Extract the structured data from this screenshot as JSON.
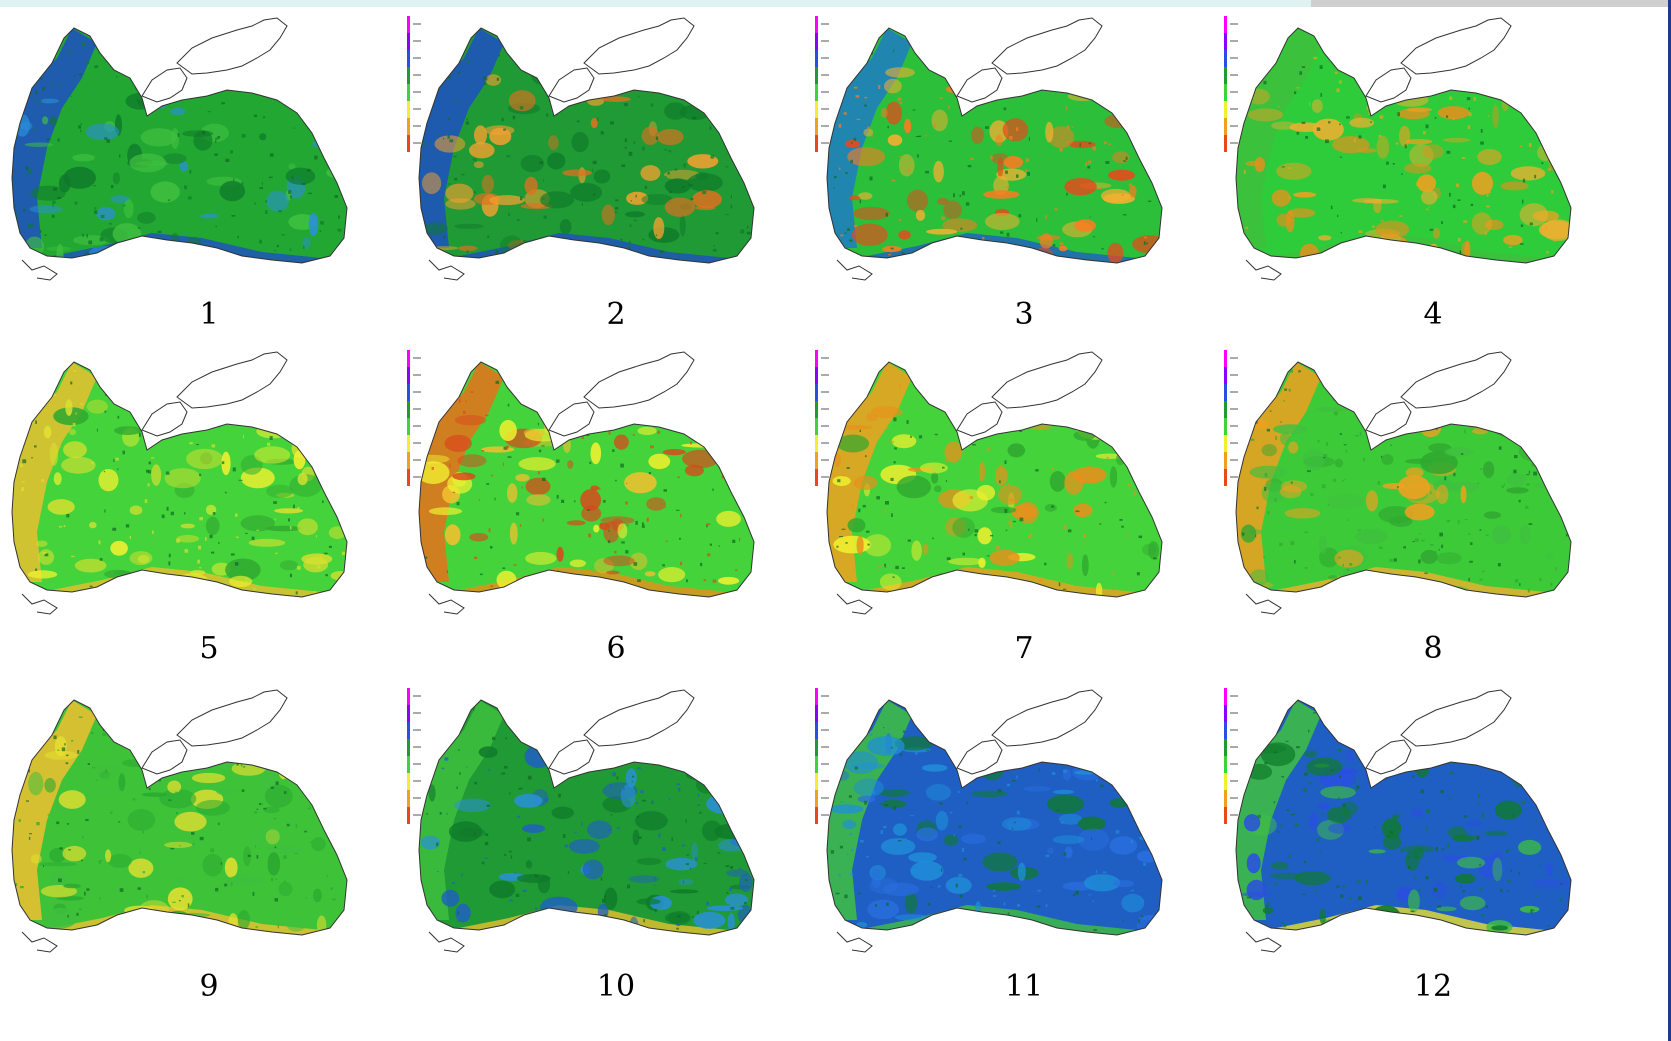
{
  "panels": [
    {
      "label": "1",
      "base": "#22a832",
      "coast": "#1f4fc4",
      "blobs": [
        "#0f7a2a",
        "#3fbf3f",
        "#2a8fd8"
      ],
      "shelf": "#1f4fc4"
    },
    {
      "label": "2",
      "base": "#1f9a34",
      "coast": "#1f4fc4",
      "blobs": [
        "#0f7a2a",
        "#f0a030",
        "#e07020"
      ],
      "shelf": "#1f4fc4"
    },
    {
      "label": "3",
      "base": "#2bbf3a",
      "coast": "#1f5fc4",
      "blobs": [
        "#ff7a20",
        "#e8491c",
        "#f4b030"
      ],
      "shelf": "#1f7ac4"
    },
    {
      "label": "4",
      "base": "#2ecb3a",
      "coast": "#3dbf3d",
      "blobs": [
        "#f2a020",
        "#f0b030",
        "#e8901c"
      ],
      "shelf": "#3dbf3d"
    },
    {
      "label": "5",
      "base": "#44d33a",
      "coast": "#e8c030",
      "blobs": [
        "#d8e030",
        "#f0f030",
        "#30a830"
      ],
      "shelf": "#e8c030"
    },
    {
      "label": "6",
      "base": "#44d33a",
      "coast": "#e8901c",
      "blobs": [
        "#d8491c",
        "#f0c030",
        "#f0f030"
      ],
      "shelf": "#e8701c"
    },
    {
      "label": "7",
      "base": "#44d33a",
      "coast": "#f0a020",
      "blobs": [
        "#e8901c",
        "#f0f030",
        "#30a830"
      ],
      "shelf": "#f0a020"
    },
    {
      "label": "8",
      "base": "#3dca38",
      "coast": "#f0b030",
      "blobs": [
        "#30a830",
        "#3fbf3f",
        "#f0a020"
      ],
      "shelf": "#f0a020"
    },
    {
      "label": "9",
      "base": "#3dc238",
      "coast": "#f0c030",
      "blobs": [
        "#2aa830",
        "#3fbf3f",
        "#e8e030"
      ],
      "shelf": "#f0c030"
    },
    {
      "label": "10",
      "base": "#1f9a34",
      "coast": "#e8c030",
      "blobs": [
        "#1f5fc4",
        "#0f7a2a",
        "#2a8fd8"
      ],
      "shelf": "#3fbf3f"
    },
    {
      "label": "11",
      "base": "#1f5fc4",
      "coast": "#3fbf3f",
      "blobs": [
        "#1f8fd8",
        "#0f7a2a",
        "#2a6fe0"
      ],
      "shelf": "#3fbf3f"
    },
    {
      "label": "12",
      "base": "#1f5fc4",
      "coast": "#e8e030",
      "blobs": [
        "#0f7a2a",
        "#2a4fe0",
        "#3fbf3f"
      ],
      "shelf": "#3fbf3f"
    }
  ],
  "colorbar": [
    "#ff00ff",
    "#8a00ff",
    "#2a4fe0",
    "#1f9a34",
    "#3fd33a",
    "#f0f030",
    "#f0a020",
    "#e8491c"
  ]
}
